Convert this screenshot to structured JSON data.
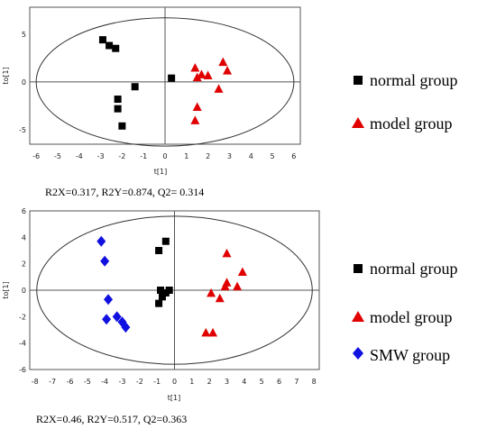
{
  "chart_data": [
    {
      "type": "scatter",
      "xlabel": "t[1]",
      "ylabel": "to[1]",
      "xlim": [
        -6.3,
        6.3
      ],
      "ylim": [
        -6.5,
        7.8
      ],
      "xticks": [
        -6,
        -5,
        -4,
        -3,
        -2,
        -1,
        0,
        1,
        2,
        3,
        4,
        5,
        6
      ],
      "yticks": [
        5,
        0,
        -5
      ],
      "ellipse": {
        "rx": 6.0,
        "ry": 6.7
      },
      "stats": "R2X=0.317, R2Y=0.874, Q2= 0.314",
      "series": [
        {
          "name": "normal group",
          "marker": "square",
          "color": "#000000",
          "points": [
            [
              -2.9,
              4.4
            ],
            [
              -2.6,
              3.8
            ],
            [
              -2.3,
              3.5
            ],
            [
              -1.4,
              -0.5
            ],
            [
              -2.2,
              -1.8
            ],
            [
              -2.2,
              -2.8
            ],
            [
              -2.0,
              -4.6
            ],
            [
              0.3,
              0.4
            ]
          ]
        },
        {
          "name": "model group",
          "marker": "triangle",
          "color": "#e00000",
          "points": [
            [
              1.4,
              1.5
            ],
            [
              1.5,
              0.5
            ],
            [
              1.7,
              0.8
            ],
            [
              2.0,
              0.7
            ],
            [
              2.7,
              2.1
            ],
            [
              2.9,
              1.2
            ],
            [
              2.5,
              -0.7
            ],
            [
              1.5,
              -2.6
            ],
            [
              1.4,
              -4.0
            ]
          ]
        }
      ]
    },
    {
      "type": "scatter",
      "xlabel": "t[1]",
      "ylabel": "to[1]",
      "xlim": [
        -8.3,
        8.3
      ],
      "ylim": [
        -6,
        6
      ],
      "xticks": [
        -8,
        -7,
        -6,
        -5,
        -4,
        -3,
        -2,
        -1,
        0,
        1,
        2,
        3,
        4,
        5,
        6,
        7,
        8
      ],
      "yticks": [
        6,
        4,
        2,
        0,
        -2,
        -4,
        -6
      ],
      "ellipse": {
        "rx": 7.9,
        "ry": 5.6
      },
      "stats": "R2X=0.46, R2Y=0.517, Q2=0.363",
      "series": [
        {
          "name": "normal group",
          "marker": "square",
          "color": "#000000",
          "points": [
            [
              -0.5,
              3.7
            ],
            [
              -0.9,
              3.0
            ],
            [
              -0.8,
              0.0
            ],
            [
              -0.5,
              -0.2
            ],
            [
              -0.3,
              0.0
            ],
            [
              -0.7,
              -0.5
            ],
            [
              -0.9,
              -1.0
            ]
          ]
        },
        {
          "name": "model group",
          "marker": "triangle",
          "color": "#e00000",
          "points": [
            [
              3.0,
              2.8
            ],
            [
              3.9,
              1.4
            ],
            [
              3.0,
              0.6
            ],
            [
              3.6,
              0.3
            ],
            [
              2.9,
              0.3
            ],
            [
              2.1,
              -0.2
            ],
            [
              2.6,
              -0.6
            ],
            [
              2.2,
              -3.2
            ],
            [
              1.8,
              -3.2
            ]
          ]
        },
        {
          "name": "SMW group",
          "marker": "diamond",
          "color": "#1010e0",
          "points": [
            [
              -4.2,
              3.7
            ],
            [
              -4.0,
              2.2
            ],
            [
              -3.8,
              -0.7
            ],
            [
              -3.9,
              -2.2
            ],
            [
              -3.3,
              -2.0
            ],
            [
              -3.0,
              -2.4
            ],
            [
              -2.8,
              -2.8
            ]
          ]
        }
      ]
    }
  ]
}
